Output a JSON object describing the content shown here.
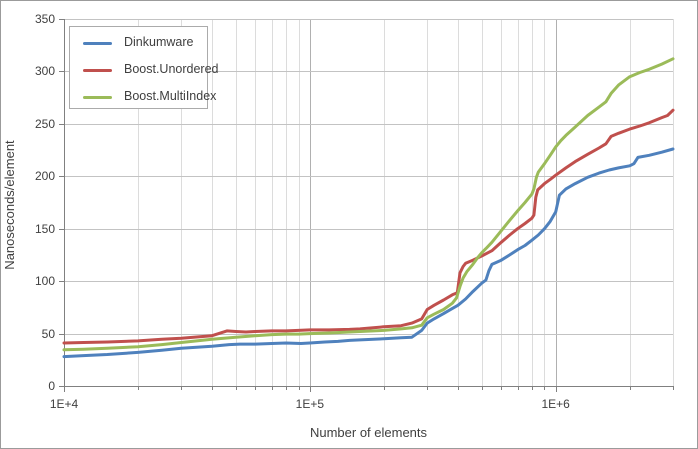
{
  "chart_data": {
    "type": "line",
    "title": "",
    "xlabel": "Number of elements",
    "ylabel": "Nanoseconds/element",
    "x_scale": "log",
    "x_range": [
      10000,
      3000000
    ],
    "y_range": [
      0,
      350
    ],
    "grid": true,
    "legend_position": "top-left",
    "y_ticks": [
      0,
      50,
      100,
      150,
      200,
      250,
      300,
      350
    ],
    "x_major_ticks": [
      {
        "value": 10000,
        "label": "1E+4"
      },
      {
        "value": 100000,
        "label": "1E+5"
      },
      {
        "value": 1000000,
        "label": "1E+6"
      }
    ],
    "colors": {
      "minor_gridline": "#dcdcdc",
      "major_gridline": "#b0b0b0",
      "horizontal_gridline": "#c3c3c3",
      "axis_line": "#808080",
      "tick_mark": "#808080",
      "text": "#3f3f3f"
    },
    "series": [
      {
        "name": "Dinkumware",
        "color": "#4f81bd",
        "points": [
          [
            10000,
            28
          ],
          [
            12000,
            29
          ],
          [
            15000,
            30
          ],
          [
            20000,
            32
          ],
          [
            25000,
            34
          ],
          [
            30000,
            36
          ],
          [
            40000,
            38
          ],
          [
            47000,
            39.5
          ],
          [
            52000,
            40
          ],
          [
            60000,
            40
          ],
          [
            70000,
            40.5
          ],
          [
            80000,
            41
          ],
          [
            92000,
            40.5
          ],
          [
            100000,
            41
          ],
          [
            115000,
            42
          ],
          [
            130000,
            42.5
          ],
          [
            145000,
            43.5
          ],
          [
            160000,
            44
          ],
          [
            200000,
            45
          ],
          [
            235000,
            46
          ],
          [
            260000,
            46.5
          ],
          [
            285000,
            53
          ],
          [
            300000,
            60
          ],
          [
            320000,
            64
          ],
          [
            350000,
            69
          ],
          [
            380000,
            74
          ],
          [
            400000,
            77
          ],
          [
            430000,
            83
          ],
          [
            460000,
            90
          ],
          [
            500000,
            98
          ],
          [
            520000,
            101
          ],
          [
            535000,
            110
          ],
          [
            550000,
            116
          ],
          [
            600000,
            120
          ],
          [
            650000,
            125
          ],
          [
            700000,
            130
          ],
          [
            750000,
            134
          ],
          [
            800000,
            139
          ],
          [
            850000,
            144
          ],
          [
            900000,
            150
          ],
          [
            950000,
            157
          ],
          [
            1000000,
            166
          ],
          [
            1035000,
            182
          ],
          [
            1100000,
            188
          ],
          [
            1200000,
            193
          ],
          [
            1350000,
            199
          ],
          [
            1500000,
            203
          ],
          [
            1650000,
            206
          ],
          [
            1800000,
            208
          ],
          [
            2000000,
            210
          ],
          [
            2080000,
            212
          ],
          [
            2160000,
            218
          ],
          [
            2400000,
            220
          ],
          [
            2700000,
            223
          ],
          [
            3000000,
            226
          ]
        ]
      },
      {
        "name": "Boost.Unordered",
        "color": "#c0504d",
        "points": [
          [
            10000,
            41
          ],
          [
            12000,
            41.5
          ],
          [
            15000,
            42
          ],
          [
            20000,
            43
          ],
          [
            25000,
            44.5
          ],
          [
            30000,
            45.5
          ],
          [
            40000,
            48
          ],
          [
            46000,
            52.5
          ],
          [
            50000,
            52
          ],
          [
            55000,
            51.5
          ],
          [
            60000,
            52
          ],
          [
            70000,
            52.5
          ],
          [
            80000,
            52.5
          ],
          [
            90000,
            53
          ],
          [
            100000,
            53.5
          ],
          [
            120000,
            53.5
          ],
          [
            145000,
            54
          ],
          [
            160000,
            54.5
          ],
          [
            200000,
            56.5
          ],
          [
            235000,
            57.5
          ],
          [
            260000,
            60
          ],
          [
            285000,
            64
          ],
          [
            300000,
            73
          ],
          [
            320000,
            77
          ],
          [
            350000,
            82
          ],
          [
            380000,
            87
          ],
          [
            398000,
            89
          ],
          [
            408000,
            108
          ],
          [
            420000,
            114
          ],
          [
            430000,
            117
          ],
          [
            460000,
            120
          ],
          [
            500000,
            124
          ],
          [
            550000,
            129
          ],
          [
            600000,
            137
          ],
          [
            650000,
            144
          ],
          [
            700000,
            150
          ],
          [
            750000,
            155
          ],
          [
            800000,
            160
          ],
          [
            815000,
            163
          ],
          [
            830000,
            180
          ],
          [
            845000,
            187
          ],
          [
            900000,
            193
          ],
          [
            950000,
            197
          ],
          [
            1000000,
            201
          ],
          [
            1100000,
            208
          ],
          [
            1200000,
            214
          ],
          [
            1350000,
            221
          ],
          [
            1500000,
            227
          ],
          [
            1600000,
            231
          ],
          [
            1680000,
            238
          ],
          [
            1800000,
            241
          ],
          [
            2000000,
            245
          ],
          [
            2200000,
            248
          ],
          [
            2400000,
            251
          ],
          [
            2700000,
            256
          ],
          [
            2850000,
            258
          ],
          [
            3000000,
            263
          ]
        ]
      },
      {
        "name": "Boost.MultiIndex",
        "color": "#9bbb59",
        "points": [
          [
            10000,
            34.5
          ],
          [
            12000,
            35
          ],
          [
            15000,
            36
          ],
          [
            20000,
            37.5
          ],
          [
            25000,
            39.5
          ],
          [
            30000,
            41.5
          ],
          [
            40000,
            44.5
          ],
          [
            50000,
            46.5
          ],
          [
            60000,
            48
          ],
          [
            70000,
            49
          ],
          [
            80000,
            49.5
          ],
          [
            90000,
            49.5
          ],
          [
            100000,
            50
          ],
          [
            120000,
            50.5
          ],
          [
            145000,
            51.5
          ],
          [
            160000,
            52
          ],
          [
            200000,
            53
          ],
          [
            235000,
            54.5
          ],
          [
            260000,
            55.5
          ],
          [
            285000,
            58
          ],
          [
            300000,
            65
          ],
          [
            320000,
            68.5
          ],
          [
            350000,
            73
          ],
          [
            380000,
            79
          ],
          [
            395000,
            84
          ],
          [
            408000,
            95
          ],
          [
            420000,
            103
          ],
          [
            435000,
            109
          ],
          [
            460000,
            116
          ],
          [
            480000,
            122
          ],
          [
            500000,
            127
          ],
          [
            520000,
            131
          ],
          [
            550000,
            137
          ],
          [
            600000,
            148
          ],
          [
            650000,
            158
          ],
          [
            700000,
            167
          ],
          [
            750000,
            175
          ],
          [
            800000,
            183
          ],
          [
            815000,
            188
          ],
          [
            835000,
            199
          ],
          [
            850000,
            204
          ],
          [
            900000,
            212
          ],
          [
            950000,
            220
          ],
          [
            1000000,
            228
          ],
          [
            1050000,
            234
          ],
          [
            1100000,
            239
          ],
          [
            1200000,
            247
          ],
          [
            1350000,
            258
          ],
          [
            1500000,
            266
          ],
          [
            1600000,
            271
          ],
          [
            1680000,
            279
          ],
          [
            1800000,
            287
          ],
          [
            2000000,
            295
          ],
          [
            2200000,
            299
          ],
          [
            2400000,
            302
          ],
          [
            2700000,
            307
          ],
          [
            3000000,
            312
          ]
        ]
      }
    ]
  }
}
